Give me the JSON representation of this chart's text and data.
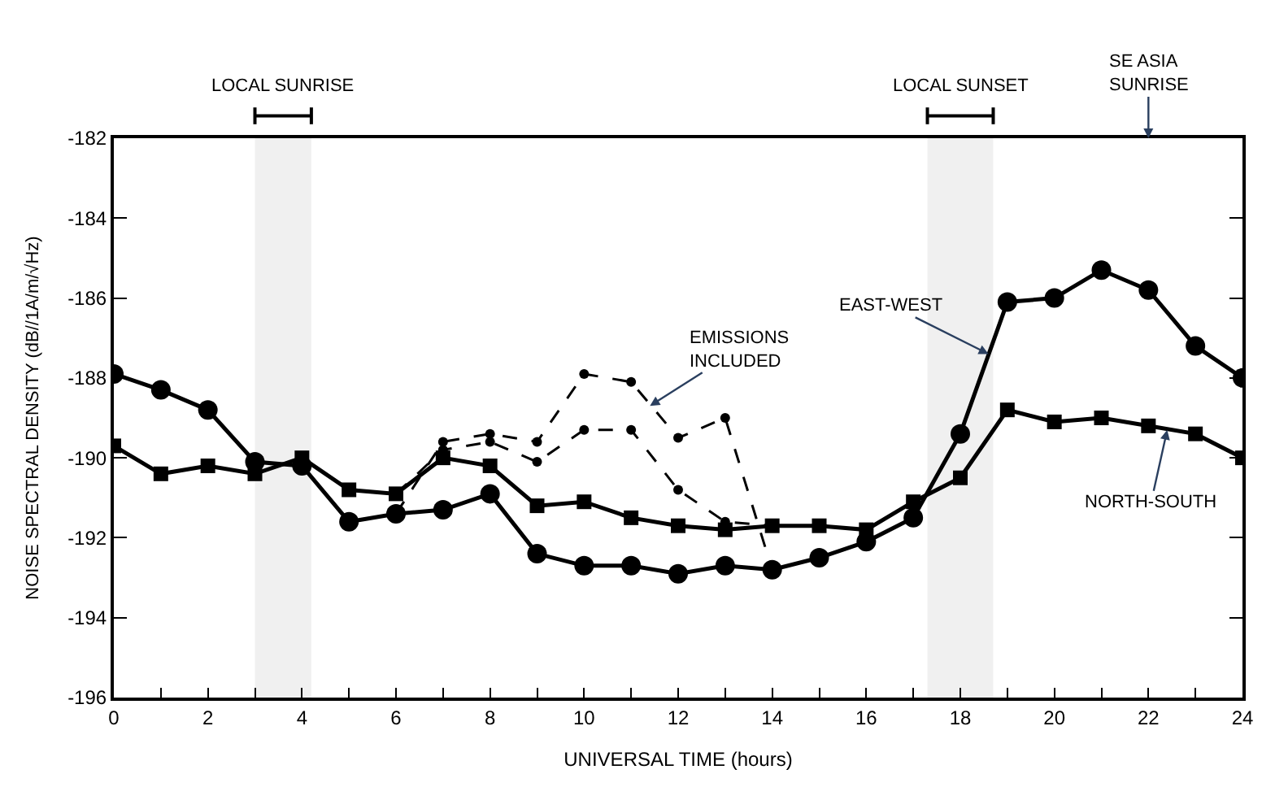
{
  "chart_data": {
    "type": "line",
    "xlabel": "UNIVERSAL TIME (hours)",
    "ylabel": "NOISE SPECTRAL DENSITY (dB//1A/m/√Hz)",
    "x": [
      0,
      1,
      2,
      3,
      4,
      5,
      6,
      7,
      8,
      9,
      10,
      11,
      12,
      13,
      14,
      15,
      16,
      17,
      18,
      19,
      20,
      21,
      22,
      23,
      24
    ],
    "series": [
      {
        "color": "#000000",
        "marker": "circle",
        "line_style": "solid",
        "values": [
          -187.9,
          -188.3,
          -188.8,
          -190.1,
          -190.2,
          -191.6,
          -191.4,
          -191.3,
          -190.9,
          -192.4,
          -192.7,
          -192.7,
          -192.9,
          -192.7,
          -192.8,
          -192.5,
          -192.1,
          -191.5,
          -189.4,
          -186.1,
          -186.0,
          -185.3,
          -185.8,
          -187.2,
          -188.0
        ]
      },
      {
        "color": "#000000",
        "marker": "square",
        "line_style": "solid",
        "values": [
          -189.7,
          -190.4,
          -190.2,
          -190.4,
          -190.0,
          -190.8,
          -190.9,
          -190.0,
          -190.2,
          -191.2,
          -191.1,
          -191.5,
          -191.7,
          -191.8,
          -191.7,
          -191.7,
          -191.8,
          -191.1,
          -190.5,
          -188.8,
          -189.1,
          -189.0,
          -189.2,
          -189.4,
          -190.0
        ]
      },
      {
        "color": "#000000",
        "marker": "circle",
        "line_style": "dashed",
        "x": [
          6,
          7,
          8,
          9,
          10,
          11,
          12,
          13,
          14
        ],
        "values": [
          -191.4,
          -189.6,
          -189.4,
          -189.6,
          -187.9,
          -188.1,
          -189.5,
          -189.0,
          -192.8
        ]
      },
      {
        "color": "#000000",
        "marker": "circle",
        "line_style": "dashed",
        "x": [
          6,
          7,
          8,
          9,
          10,
          11,
          12,
          13,
          14
        ],
        "values": [
          -190.9,
          -189.8,
          -189.6,
          -190.1,
          -189.3,
          -189.3,
          -190.8,
          -191.6,
          -191.7
        ]
      }
    ],
    "xlim": [
      0,
      24
    ],
    "xticks": [
      0,
      {
        "value": 1,
        "label": null
      },
      2,
      {
        "value": 3,
        "label": null
      },
      4,
      {
        "value": 5,
        "label": null
      },
      6,
      {
        "value": 7,
        "label": null
      },
      8,
      {
        "value": 9,
        "label": null
      },
      10,
      {
        "value": 11,
        "label": null
      },
      12,
      {
        "value": 13,
        "label": null
      },
      14,
      {
        "value": 15,
        "label": null
      },
      16,
      {
        "value": 17,
        "label": null
      },
      18,
      {
        "value": 19,
        "label": null
      },
      20,
      {
        "value": 21,
        "label": null
      },
      22,
      {
        "value": 23,
        "label": null
      },
      24
    ],
    "ylim": [
      -196,
      -182
    ],
    "yticks": [
      -196,
      -194,
      -192,
      -190,
      -188,
      -186,
      -184,
      -182
    ],
    "annotations": [
      {
        "text": "EAST-WEST",
        "x": 18.6,
        "y": -187.4
      },
      {
        "text": "NORTH-SOUTH",
        "x": 22.4,
        "y": -189.3
      },
      {
        "text": "EMISSIONS\nINCLUDED",
        "x": 11.4,
        "y": -188.7
      },
      "SE ASIA\nSUNRISE"
    ],
    "bands": [
      {
        "axis": "x",
        "from": 3.0,
        "to": 4.2,
        "label": "LOCAL SUNRISE"
      },
      {
        "axis": "x",
        "from": 17.3,
        "to": 18.7,
        "label": "LOCAL SUNSET"
      }
    ]
  }
}
